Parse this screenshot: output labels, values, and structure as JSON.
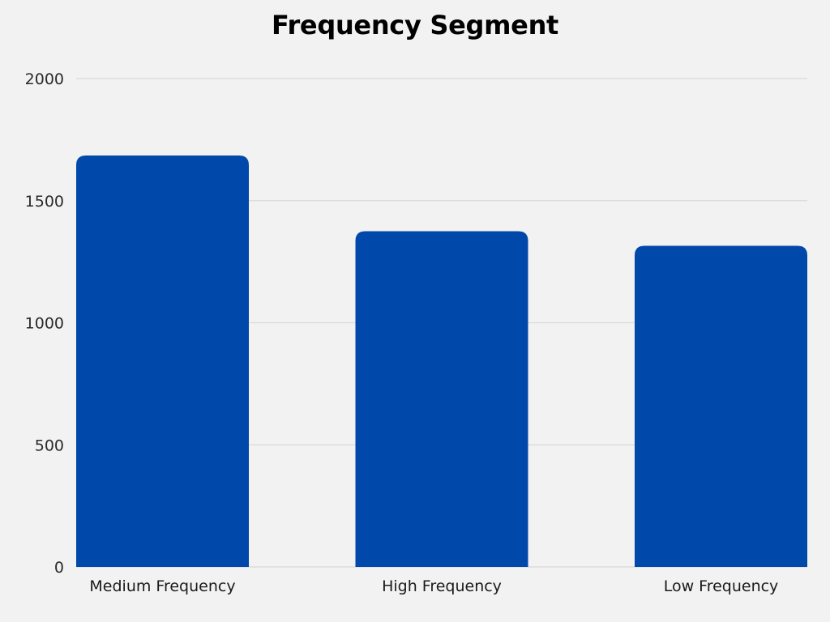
{
  "chart_data": {
    "type": "bar",
    "title": "Frequency Segment",
    "xlabel": "",
    "ylabel": "",
    "categories": [
      "Medium Frequency",
      "High Frequency",
      "Low Frequency"
    ],
    "values": [
      1685,
      1375,
      1315
    ],
    "ylim": [
      0,
      2000
    ],
    "yticks": [
      0,
      500,
      1000,
      1500,
      2000
    ],
    "grid": true,
    "legend": "none",
    "colors": {
      "bar": "#0049aa",
      "grid": "#d9d9d9",
      "background": "#f2f2f2"
    }
  }
}
